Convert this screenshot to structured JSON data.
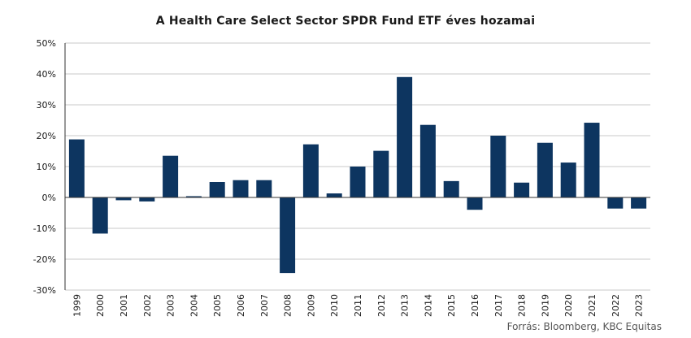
{
  "chart_data": {
    "type": "bar",
    "title": "A Health Care Select Sector SPDR Fund ETF éves hozamai",
    "xlabel": "",
    "ylabel": "",
    "categories": [
      "1999",
      "2000",
      "2001",
      "2002",
      "2003",
      "2004",
      "2005",
      "2006",
      "2007",
      "2008",
      "2009",
      "2010",
      "2011",
      "2012",
      "2013",
      "2014",
      "2015",
      "2016",
      "2017",
      "2018",
      "2019",
      "2020",
      "2021",
      "2022",
      "2023"
    ],
    "values": [
      18.8,
      -11.7,
      -0.9,
      -1.3,
      13.5,
      0.4,
      5.0,
      5.6,
      5.6,
      -24.5,
      17.2,
      1.3,
      10.0,
      15.1,
      39.0,
      23.5,
      5.3,
      -4.0,
      20.0,
      4.8,
      17.7,
      11.3,
      24.2,
      -3.6,
      -3.6
    ],
    "ylim": [
      -30,
      50
    ],
    "yticks": [
      "50%",
      "40%",
      "30%",
      "20%",
      "10%",
      "0%",
      "-10%",
      "-20%",
      "-30%"
    ],
    "ytick_values": [
      50,
      40,
      30,
      20,
      10,
      0,
      -10,
      -20,
      -30
    ],
    "grid": true,
    "legend": "none",
    "bar_color": "#0d3560",
    "source": "Forrás: Bloomberg,  KBC Equitas"
  }
}
